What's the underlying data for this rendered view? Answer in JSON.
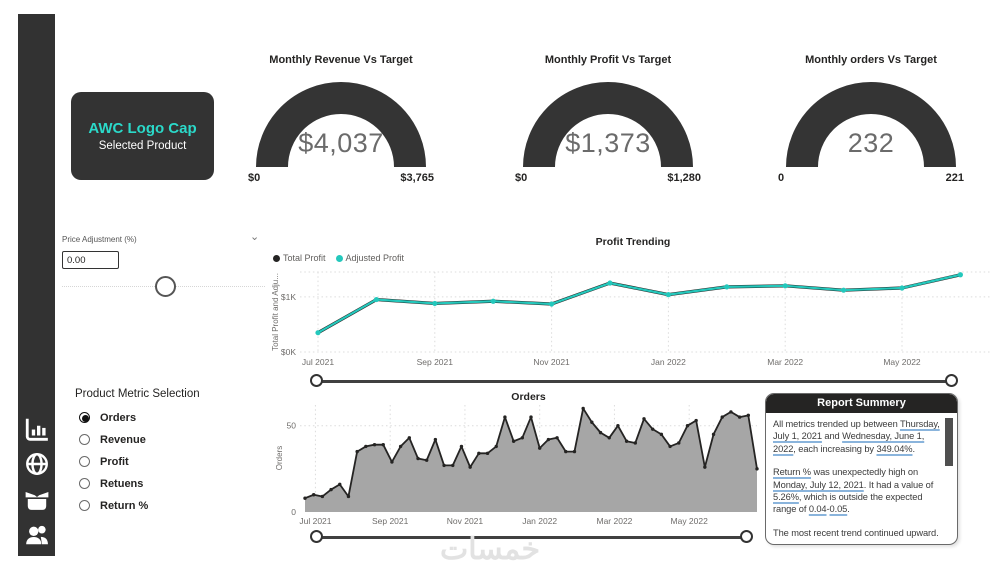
{
  "sidebar": {
    "icons": [
      {
        "name": "bar-chart-icon"
      },
      {
        "name": "globe-icon"
      },
      {
        "name": "open-box-icon"
      },
      {
        "name": "users-icon"
      }
    ]
  },
  "product_card": {
    "title": "AWC Logo Cap",
    "subtitle": "Selected Product"
  },
  "gauges": [
    {
      "title": "Monthly Revenue Vs Target",
      "value": "$4,037",
      "min": "$0",
      "max": "$3,765"
    },
    {
      "title": "Monthly Profit Vs Target",
      "value": "$1,373",
      "min": "$0",
      "max": "$1,280"
    },
    {
      "title": "Monthly orders Vs Target",
      "value": "232",
      "min": "0",
      "max": "221"
    }
  ],
  "price_adjustment": {
    "label": "Price Adjustment (%)",
    "value": "0.00",
    "chevron_icon": "⌄"
  },
  "metric_selection": {
    "title": "Product Metric Selection",
    "options": [
      {
        "label": "Orders",
        "selected": true
      },
      {
        "label": "Revenue",
        "selected": false
      },
      {
        "label": "Profit",
        "selected": false
      },
      {
        "label": "Retuens",
        "selected": false
      },
      {
        "label": "Return %",
        "selected": false
      }
    ]
  },
  "report_summary": {
    "title": "Report Summery",
    "paragraphs": [
      {
        "segments": [
          {
            "t": "All metrics trended up between "
          },
          {
            "t": "Thursday, July 1, 2021",
            "u": true
          },
          {
            "t": " and "
          },
          {
            "t": "Wednesday, June 1, 2022",
            "u": true
          },
          {
            "t": ", each increasing by "
          },
          {
            "t": "349.04%",
            "u": true
          },
          {
            "t": "."
          }
        ]
      },
      {
        "segments": [
          {
            "t": "Return %",
            "u": true
          },
          {
            "t": " was unexpectedly high on "
          },
          {
            "t": "Monday, July 12, 2021",
            "u": true
          },
          {
            "t": ". It had a value of "
          },
          {
            "t": "5.26%",
            "u": true
          },
          {
            "t": ", which is outside the expected range of "
          },
          {
            "t": "0.04",
            "u": true
          },
          {
            "t": "-"
          },
          {
            "t": "0.05",
            "u": true
          },
          {
            "t": "."
          }
        ]
      },
      {
        "clipped": true,
        "segments": [
          {
            "t": "The most recent trend continued upward."
          }
        ]
      }
    ]
  },
  "watermark": "خمسات",
  "colors": {
    "dark": "#333333",
    "teal": "#24c8bc",
    "teal_bright": "#2bd9c9",
    "area_fill": "#a6a6a6",
    "line_dark": "#252423",
    "grid": "#dcdcdc",
    "axis_text": "#6f6d6b",
    "underline": "#8ab4dc"
  },
  "chart_data": [
    {
      "type": "line",
      "title": "Profit Trending",
      "ylabel": "Total Profit and Adju...",
      "x": [
        "Jul 2021",
        "Aug 2021",
        "Sep 2021",
        "Oct 2021",
        "Nov 2021",
        "Dec 2021",
        "Jan 2022",
        "Feb 2022",
        "Mar 2022",
        "Apr 2022",
        "May 2022",
        "Jun 2022"
      ],
      "x_ticks": [
        "Jul 2021",
        "Sep 2021",
        "Nov 2021",
        "Jan 2022",
        "Mar 2022",
        "May 2022"
      ],
      "y_ticks": [
        "$0K",
        "$1K"
      ],
      "ylim": [
        0,
        1.45
      ],
      "grid": true,
      "legend_position": "top-left",
      "series": [
        {
          "name": "Total Profit",
          "color": "#252423",
          "values_k": [
            0.35,
            0.95,
            0.88,
            0.92,
            0.87,
            1.25,
            1.04,
            1.18,
            1.2,
            1.12,
            1.16,
            1.4
          ]
        },
        {
          "name": "Adjusted Profit",
          "color": "#24c8bc",
          "values_k": [
            0.35,
            0.95,
            0.88,
            0.92,
            0.87,
            1.25,
            1.04,
            1.18,
            1.2,
            1.12,
            1.16,
            1.4
          ]
        }
      ]
    },
    {
      "type": "area",
      "title": "Orders",
      "ylabel": "Orders",
      "x_unit": "week",
      "x_start": "Jul 2021",
      "x_ticks": [
        "Jul 2021",
        "Sep 2021",
        "Nov 2021",
        "Jan 2022",
        "Mar 2022",
        "May 2022"
      ],
      "y_ticks": [
        "0",
        "50"
      ],
      "ylim": [
        0,
        62
      ],
      "grid": true,
      "values": [
        8,
        10,
        9,
        13,
        16,
        9,
        35,
        38,
        39,
        39,
        29,
        38,
        43,
        31,
        30,
        42,
        27,
        27,
        38,
        26,
        34,
        34,
        38,
        55,
        41,
        43,
        55,
        37,
        42,
        43,
        35,
        35,
        60,
        52,
        46,
        43,
        50,
        41,
        40,
        54,
        48,
        45,
        38,
        40,
        50,
        53,
        26,
        45,
        55,
        58,
        55,
        56,
        25
      ]
    }
  ]
}
